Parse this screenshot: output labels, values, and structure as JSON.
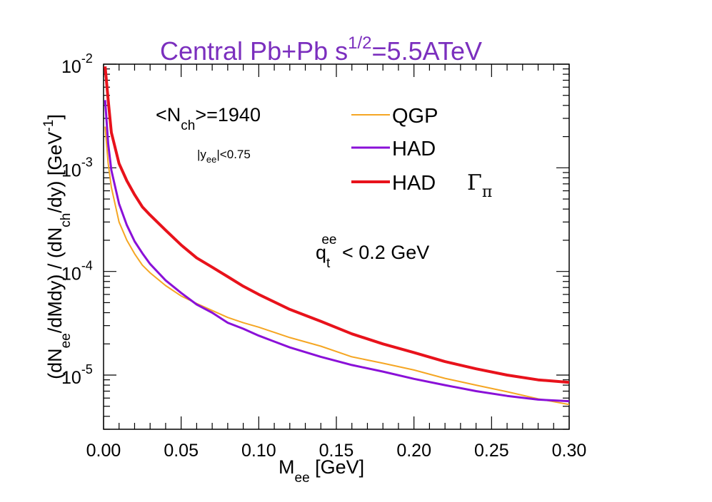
{
  "chart_data": {
    "type": "line",
    "title": {
      "main": "Central Pb+Pb  s",
      "sup": "1/2",
      "rest": "=5.5ATeV"
    },
    "xlabel": {
      "main": "M",
      "sub": "ee",
      "rest": " [GeV]"
    },
    "ylabel": {
      "p1": "(dN",
      "p1_sub": "ee",
      "p2": "/dMdy) / (dN",
      "p2_sub": "ch",
      "p3": "/dy)  [GeV",
      "p3_sup": "-1",
      "p4": "]"
    },
    "xlim": [
      0.0,
      0.3
    ],
    "ylim": [
      3e-06,
      0.01
    ],
    "yscale": "log",
    "x_ticks": [
      "0.00",
      "0.05",
      "0.10",
      "0.15",
      "0.20",
      "0.25",
      "0.30"
    ],
    "y_ticks": [
      {
        "value": 1e-05,
        "base": "10",
        "exp": "-5"
      },
      {
        "value": 0.0001,
        "base": "10",
        "exp": "-4"
      },
      {
        "value": 0.001,
        "base": "10",
        "exp": "-3"
      },
      {
        "value": 0.01,
        "base": "10",
        "exp": "-2"
      }
    ],
    "annotations": {
      "nch": {
        "a": "<N",
        "sub": "ch",
        "b": ">=1940"
      },
      "yee": {
        "a": "|y",
        "sub": "ee",
        "b": "|<0.75"
      },
      "qt": {
        "a": "q",
        "sub": "t",
        "sup": "ee",
        "b": " < 0.2 GeV"
      }
    },
    "legend": {
      "placement": "top-right"
    },
    "series": [
      {
        "name": "QGP",
        "color": "#f5a623",
        "x": [
          0.001,
          0.003,
          0.005,
          0.01,
          0.015,
          0.02,
          0.025,
          0.03,
          0.04,
          0.05,
          0.06,
          0.07,
          0.08,
          0.09,
          0.1,
          0.12,
          0.14,
          0.16,
          0.18,
          0.2,
          0.22,
          0.24,
          0.26,
          0.28,
          0.3
        ],
        "y": [
          0.0025,
          0.0011,
          0.00065,
          0.0003,
          0.0002,
          0.000148,
          0.000115,
          9.7e-05,
          7.3e-05,
          5.8e-05,
          4.9e-05,
          4.2e-05,
          3.6e-05,
          3.2e-05,
          2.9e-05,
          2.3e-05,
          1.9e-05,
          1.5e-05,
          1.3e-05,
          1.12e-05,
          9.3e-06,
          8e-06,
          6.9e-06,
          5.9e-06,
          5.2e-06
        ]
      },
      {
        "name": "HAD",
        "color": "#8a10d8",
        "x": [
          0.001,
          0.003,
          0.005,
          0.01,
          0.015,
          0.02,
          0.025,
          0.03,
          0.04,
          0.05,
          0.06,
          0.07,
          0.08,
          0.09,
          0.1,
          0.12,
          0.14,
          0.16,
          0.18,
          0.2,
          0.22,
          0.24,
          0.26,
          0.28,
          0.3
        ],
        "y": [
          0.0045,
          0.0017,
          0.00095,
          0.00045,
          0.00028,
          0.000195,
          0.00015,
          0.000118,
          8.2e-05,
          6.2e-05,
          4.8e-05,
          4e-05,
          3.2e-05,
          2.8e-05,
          2.4e-05,
          1.85e-05,
          1.5e-05,
          1.25e-05,
          1.08e-05,
          9.2e-06,
          8e-06,
          7e-06,
          6.3e-06,
          5.8e-06,
          5.6e-06
        ]
      },
      {
        "name": "HAD",
        "name_sym": "Γ",
        "name_sub": "π",
        "color": "#e8121b",
        "x": [
          0.001,
          0.003,
          0.005,
          0.01,
          0.015,
          0.02,
          0.025,
          0.03,
          0.04,
          0.05,
          0.06,
          0.07,
          0.08,
          0.09,
          0.1,
          0.12,
          0.14,
          0.16,
          0.18,
          0.2,
          0.22,
          0.24,
          0.26,
          0.28,
          0.3
        ],
        "y": [
          0.0095,
          0.0045,
          0.0022,
          0.0011,
          0.00075,
          0.00055,
          0.00042,
          0.00035,
          0.00025,
          0.00018,
          0.000135,
          0.00011,
          8.9e-05,
          7.2e-05,
          6e-05,
          4.3e-05,
          3.3e-05,
          2.5e-05,
          2e-05,
          1.65e-05,
          1.35e-05,
          1.15e-05,
          1e-05,
          9e-06,
          8.5e-06
        ]
      }
    ]
  }
}
